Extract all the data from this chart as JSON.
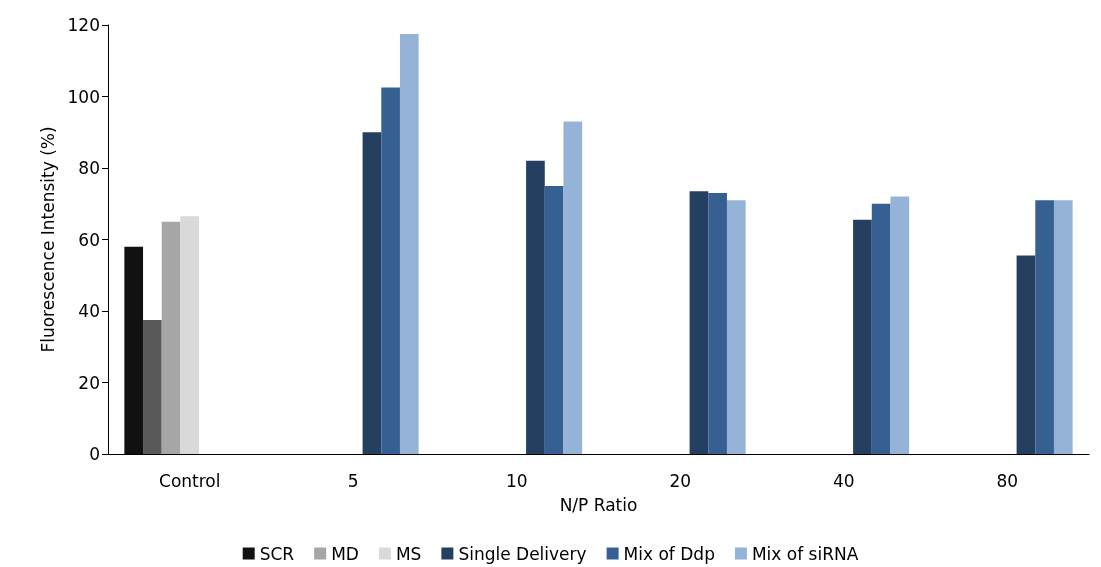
{
  "chart_data": {
    "type": "bar",
    "xlabel": "N/P Ratio",
    "ylabel": "Fluorescence Intensity (%)",
    "categories": [
      "Control",
      "5",
      "10",
      "20",
      "40",
      "80"
    ],
    "ylim": [
      0,
      120
    ],
    "yticks": [
      0,
      20,
      40,
      60,
      80,
      100,
      120
    ],
    "grid": false,
    "legend": "bottom",
    "series": [
      {
        "name": "SCR",
        "color": "#111111",
        "values": [
          58,
          null,
          null,
          null,
          null,
          null
        ]
      },
      {
        "color": "#595959",
        "values": [
          37.5,
          null,
          null,
          null,
          null,
          null
        ]
      },
      {
        "name": "MD",
        "color": "#a6a6a6",
        "values": [
          65,
          null,
          null,
          null,
          null,
          null
        ]
      },
      {
        "name": "MS",
        "color": "#d9d9d9",
        "values": [
          66.5,
          null,
          null,
          null,
          null,
          null
        ]
      },
      {
        "name": "Single Delivery",
        "color": "#243f60",
        "values": [
          null,
          90,
          82,
          73.5,
          65.5,
          55.5
        ]
      },
      {
        "name": "Mix of Ddp",
        "color": "#366092",
        "values": [
          null,
          102.5,
          75,
          73,
          70,
          71
        ]
      },
      {
        "name": "Mix of siRNA",
        "color": "#95b3d7",
        "values": [
          null,
          117.5,
          93,
          71,
          72,
          71
        ]
      }
    ]
  }
}
